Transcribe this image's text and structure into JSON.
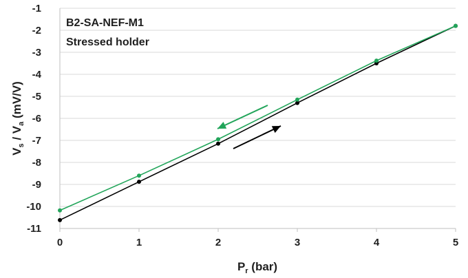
{
  "chart_data": {
    "type": "line",
    "annotations": [
      "B2-SA-NEF-M1",
      "Stressed holder"
    ],
    "xlabel": {
      "main": "P",
      "sub": "r",
      "rest": " (bar)"
    },
    "ylabel": {
      "a": "V",
      "a_sub": "s",
      "b": " / V",
      "b_sub": "a",
      "rest": " (mV/V)"
    },
    "xlim": [
      0,
      5
    ],
    "ylim": [
      -11,
      -1
    ],
    "xticks": [
      "0",
      "1",
      "2",
      "3",
      "4",
      "5"
    ],
    "yticks": [
      "-1",
      "-2",
      "-3",
      "-4",
      "-5",
      "-6",
      "-7",
      "-8",
      "-9",
      "-10",
      "-11"
    ],
    "grid": {
      "horizontal": true,
      "vertical": false
    },
    "series": [
      {
        "color": "#000000",
        "direction": "increasing",
        "x": [
          0,
          1,
          2,
          3,
          4,
          5
        ],
        "y": [
          -10.62,
          -8.88,
          -7.15,
          -5.3,
          -3.5,
          -1.8
        ]
      },
      {
        "color": "#22a55a",
        "direction": "decreasing",
        "x": [
          0,
          1,
          2,
          3,
          4,
          5
        ],
        "y": [
          -10.18,
          -8.6,
          -6.95,
          -5.15,
          -3.38,
          -1.8
        ]
      }
    ]
  }
}
